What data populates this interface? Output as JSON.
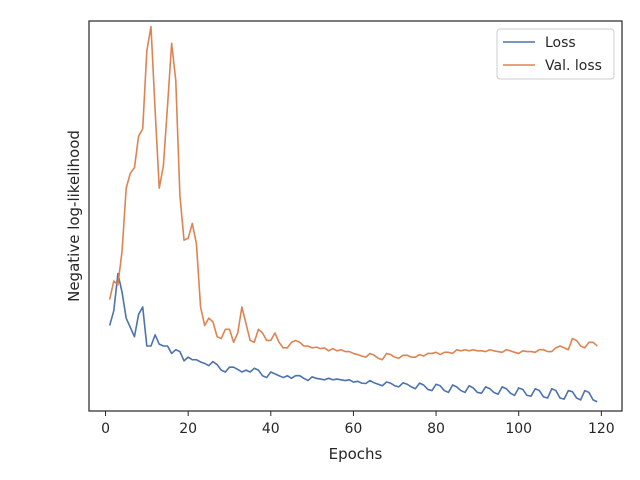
{
  "chart_data": {
    "type": "line",
    "xlabel": "Epochs",
    "ylabel": "Negative log-likelihood",
    "xlim": [
      -4,
      125
    ],
    "ylim": [
      -0.5,
      10
    ],
    "y_ticks_shown": false,
    "x_ticks": [
      0,
      20,
      40,
      60,
      80,
      100,
      120
    ],
    "grid": false,
    "legend_position": "upper right",
    "series": [
      {
        "name": "Loss",
        "color": "#4c72b0",
        "x": [
          1,
          2,
          3,
          4,
          5,
          6,
          7,
          8,
          9,
          10,
          11,
          12,
          13,
          14,
          15,
          16,
          17,
          18,
          19,
          20,
          21,
          22,
          23,
          24,
          25,
          26,
          27,
          28,
          29,
          30,
          31,
          32,
          33,
          34,
          35,
          36,
          37,
          38,
          39,
          40,
          41,
          42,
          43,
          44,
          45,
          46,
          47,
          48,
          49,
          50,
          51,
          52,
          53,
          54,
          55,
          56,
          57,
          58,
          59,
          60,
          61,
          62,
          63,
          64,
          65,
          66,
          67,
          68,
          69,
          70,
          71,
          72,
          73,
          74,
          75,
          76,
          77,
          78,
          79,
          80,
          81,
          82,
          83,
          84,
          85,
          86,
          87,
          88,
          89,
          90,
          91,
          92,
          93,
          94,
          95,
          96,
          97,
          98,
          99,
          100,
          101,
          102,
          103,
          104,
          105,
          106,
          107,
          108,
          109,
          110,
          111,
          112,
          113,
          114,
          115,
          116,
          117,
          118,
          119
        ],
        "y": [
          1.8,
          2.2,
          3.2,
          2.7,
          2.0,
          1.75,
          1.5,
          2.1,
          2.3,
          1.25,
          1.25,
          1.55,
          1.3,
          1.25,
          1.25,
          1.05,
          1.15,
          1.1,
          0.85,
          0.95,
          0.88,
          0.88,
          0.82,
          0.78,
          0.72,
          0.83,
          0.75,
          0.6,
          0.55,
          0.68,
          0.68,
          0.62,
          0.55,
          0.6,
          0.55,
          0.65,
          0.6,
          0.45,
          0.4,
          0.55,
          0.5,
          0.45,
          0.4,
          0.45,
          0.38,
          0.45,
          0.45,
          0.38,
          0.32,
          0.42,
          0.38,
          0.36,
          0.34,
          0.38,
          0.34,
          0.36,
          0.34,
          0.32,
          0.34,
          0.28,
          0.3,
          0.25,
          0.24,
          0.32,
          0.26,
          0.22,
          0.18,
          0.28,
          0.25,
          0.18,
          0.15,
          0.26,
          0.22,
          0.15,
          0.1,
          0.25,
          0.2,
          0.08,
          0.05,
          0.22,
          0.18,
          0.05,
          0.0,
          0.2,
          0.15,
          0.05,
          0.0,
          0.18,
          0.12,
          0.0,
          -0.02,
          0.15,
          0.1,
          0.0,
          -0.05,
          0.15,
          0.1,
          -0.02,
          -0.08,
          0.12,
          0.08,
          -0.08,
          -0.1,
          0.1,
          0.05,
          -0.12,
          -0.15,
          0.1,
          0.05,
          -0.15,
          -0.18,
          0.05,
          0.02,
          -0.15,
          -0.2,
          0.05,
          0.0,
          -0.2,
          -0.25
        ]
      },
      {
        "name": "Val. loss",
        "color": "#dd8452",
        "x": [
          1,
          2,
          3,
          4,
          5,
          6,
          7,
          8,
          9,
          10,
          11,
          12,
          13,
          14,
          15,
          16,
          17,
          18,
          19,
          20,
          21,
          22,
          23,
          24,
          25,
          26,
          27,
          28,
          29,
          30,
          31,
          32,
          33,
          34,
          35,
          36,
          37,
          38,
          39,
          40,
          41,
          42,
          43,
          44,
          45,
          46,
          47,
          48,
          49,
          50,
          51,
          52,
          53,
          54,
          55,
          56,
          57,
          58,
          59,
          60,
          61,
          62,
          63,
          64,
          65,
          66,
          67,
          68,
          69,
          70,
          71,
          72,
          73,
          74,
          75,
          76,
          77,
          78,
          79,
          80,
          81,
          82,
          83,
          84,
          85,
          86,
          87,
          88,
          89,
          90,
          91,
          92,
          93,
          94,
          95,
          96,
          97,
          98,
          99,
          100,
          101,
          102,
          103,
          104,
          105,
          106,
          107,
          108,
          109,
          110,
          111,
          112,
          113,
          114,
          115,
          116,
          117,
          118,
          119
        ],
        "y": [
          2.5,
          3.0,
          2.9,
          3.8,
          5.5,
          5.9,
          6.05,
          6.9,
          7.1,
          9.2,
          9.85,
          7.6,
          5.5,
          6.1,
          7.7,
          9.4,
          8.4,
          5.3,
          4.1,
          4.15,
          4.55,
          4.0,
          2.3,
          1.8,
          2.0,
          1.9,
          1.5,
          1.45,
          1.7,
          1.7,
          1.35,
          1.6,
          2.3,
          1.85,
          1.4,
          1.35,
          1.7,
          1.6,
          1.4,
          1.4,
          1.6,
          1.35,
          1.2,
          1.2,
          1.35,
          1.4,
          1.35,
          1.25,
          1.25,
          1.2,
          1.22,
          1.18,
          1.2,
          1.12,
          1.18,
          1.12,
          1.15,
          1.1,
          1.1,
          1.05,
          1.02,
          0.98,
          0.95,
          1.05,
          1.0,
          0.92,
          0.88,
          1.05,
          1.02,
          0.95,
          0.92,
          1.0,
          1.0,
          0.95,
          0.95,
          1.02,
          0.98,
          1.05,
          1.05,
          1.08,
          1.02,
          1.08,
          1.08,
          1.05,
          1.15,
          1.12,
          1.15,
          1.12,
          1.15,
          1.12,
          1.12,
          1.1,
          1.15,
          1.12,
          1.1,
          1.08,
          1.15,
          1.12,
          1.08,
          1.05,
          1.12,
          1.1,
          1.1,
          1.08,
          1.15,
          1.15,
          1.1,
          1.1,
          1.2,
          1.25,
          1.2,
          1.15,
          1.45,
          1.4,
          1.25,
          1.2,
          1.35,
          1.35,
          1.25
        ]
      }
    ]
  }
}
